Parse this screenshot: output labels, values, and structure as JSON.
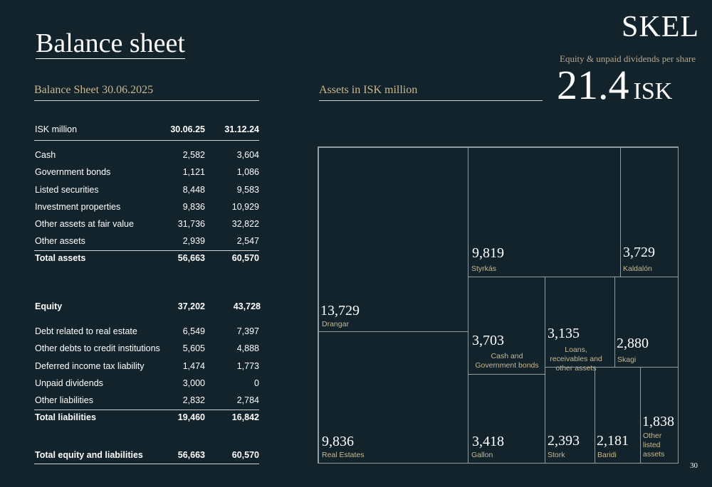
{
  "page": {
    "title": "Balance sheet",
    "logo": "SKEL",
    "page_number": "30"
  },
  "eps": {
    "label": "Equity & unpaid dividends per share",
    "value": "21.4",
    "unit": "ISK"
  },
  "balance": {
    "heading": "Balance Sheet 30.06.2025",
    "header": {
      "label": "ISK million",
      "c1": "30.06.25",
      "c2": "31.12.24"
    },
    "assets": [
      {
        "label": "Cash",
        "c1": "2,582",
        "c2": "3,604"
      },
      {
        "label": "Government bonds",
        "c1": "1,121",
        "c2": "1,086"
      },
      {
        "label": "Listed securities",
        "c1": "8,448",
        "c2": "9,583"
      },
      {
        "label": "Investment properties",
        "c1": "9,836",
        "c2": "10,929"
      },
      {
        "label": "Other assets at fair value",
        "c1": "31,736",
        "c2": "32,822"
      },
      {
        "label": "Other assets",
        "c1": "2,939",
        "c2": "2,547"
      }
    ],
    "total_assets": {
      "label": "Total assets",
      "c1": "56,663",
      "c2": "60,570"
    },
    "equity": {
      "label": "Equity",
      "c1": "37,202",
      "c2": "43,728"
    },
    "liabilities": [
      {
        "label": "Debt related to real estate",
        "c1": "6,549",
        "c2": "7,397"
      },
      {
        "label": "Other debts to credit institutions",
        "c1": "5,605",
        "c2": "4,888"
      },
      {
        "label": "Deferred income tax liability",
        "c1": "1,474",
        "c2": "1,773"
      },
      {
        "label": "Unpaid dividends",
        "c1": "3,000",
        "c2": "0"
      },
      {
        "label": "Other liabilities",
        "c1": "2,832",
        "c2": "2,784"
      }
    ],
    "total_liabilities": {
      "label": "Total liabilities",
      "c1": "19,460",
      "c2": "16,842"
    },
    "total_eq_liab": {
      "label": "Total equity and liabilities",
      "c1": "56,663",
      "c2": "60,570"
    }
  },
  "assets_chart": {
    "heading": "Assets in ISK million",
    "cells": [
      {
        "value": "13,729",
        "name": "Drangar"
      },
      {
        "value": "9,836",
        "name": "Real Estates"
      },
      {
        "value": "9,819",
        "name": "Styrkás"
      },
      {
        "value": "3,729",
        "name": "Kaldalón"
      },
      {
        "value": "3,703",
        "name": "Cash and Government bonds"
      },
      {
        "value": "3,135",
        "name": "Loans, receivables and other assets"
      },
      {
        "value": "2,880",
        "name": "Skagi"
      },
      {
        "value": "3,418",
        "name": "Gallon"
      },
      {
        "value": "2,393",
        "name": "Stork"
      },
      {
        "value": "2,181",
        "name": "Baridi"
      },
      {
        "value": "1,838",
        "name": "Other listed assets"
      }
    ]
  }
}
